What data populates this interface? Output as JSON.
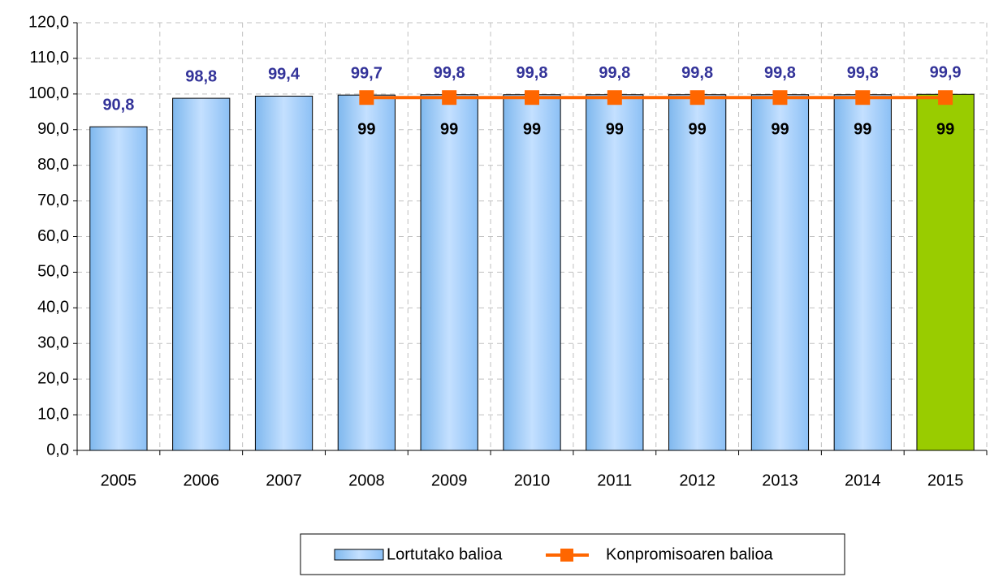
{
  "chart_data": {
    "type": "bar",
    "categories": [
      "2005",
      "2006",
      "2007",
      "2008",
      "2009",
      "2010",
      "2011",
      "2012",
      "2013",
      "2014",
      "2015"
    ],
    "series": [
      {
        "name": "Lortutako balioa",
        "type": "bar",
        "color": "#99ccff",
        "colors": [
          "#99ccff",
          "#99ccff",
          "#99ccff",
          "#99ccff",
          "#99ccff",
          "#99ccff",
          "#99ccff",
          "#99ccff",
          "#99ccff",
          "#99ccff",
          "#99cc00"
        ],
        "values": [
          90.8,
          98.8,
          99.4,
          99.7,
          99.8,
          99.8,
          99.8,
          99.8,
          99.8,
          99.8,
          99.9
        ],
        "value_labels": [
          "90,8",
          "98,8",
          "99,4",
          "99,7",
          "99,8",
          "99,8",
          "99,8",
          "99,8",
          "99,8",
          "99,8",
          "99,9"
        ]
      },
      {
        "name": "Konpromisoaren balioa",
        "type": "line",
        "color": "#ff6600",
        "values": [
          null,
          null,
          null,
          99,
          99,
          99,
          99,
          99,
          99,
          99,
          99
        ]
      }
    ],
    "ylim": [
      0,
      120
    ],
    "yticks": [
      {
        "value": 0,
        "label": "0,0"
      },
      {
        "value": 10,
        "label": "10,0"
      },
      {
        "value": 20,
        "label": "20,0"
      },
      {
        "value": 30,
        "label": "30,0"
      },
      {
        "value": 40,
        "label": "40,0"
      },
      {
        "value": 50,
        "label": "50,0"
      },
      {
        "value": 60,
        "label": "60,0"
      },
      {
        "value": 70,
        "label": "70,0"
      },
      {
        "value": 80,
        "label": "80,0"
      },
      {
        "value": 90,
        "label": "90,0"
      },
      {
        "value": 100,
        "label": "100,0"
      },
      {
        "value": 110,
        "label": "110,0"
      },
      {
        "value": 120,
        "label": "120,0"
      }
    ],
    "grid": true,
    "legend": "bottom"
  }
}
